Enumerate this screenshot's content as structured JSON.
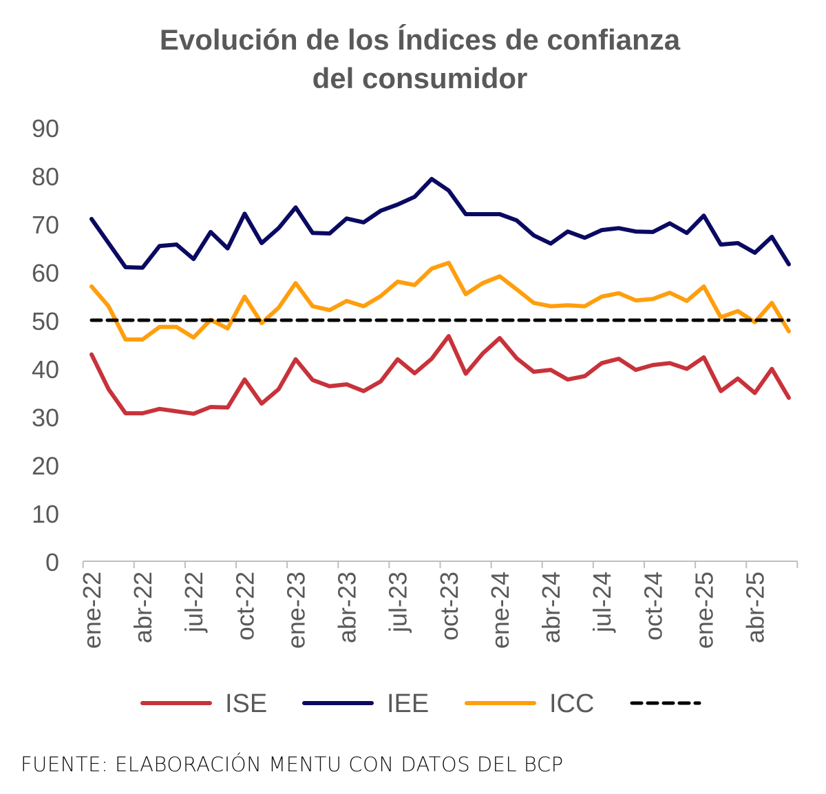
{
  "chart_data": {
    "type": "line",
    "title": [
      "Evolución de los Índices de confianza",
      "del consumidor"
    ],
    "xlabel": "",
    "ylabel": "",
    "ylim": [
      0,
      90
    ],
    "yticks": [
      "0",
      "10",
      "20",
      "30",
      "40",
      "50",
      "60",
      "70",
      "80",
      "90"
    ],
    "x_tick_labels": [
      "ene-22",
      "abr-22",
      "jul-22",
      "oct-22",
      "ene-23",
      "abr-23",
      "jul-23",
      "oct-23",
      "ene-24",
      "abr-24",
      "jul-24",
      "oct-24",
      "ene-25",
      "abr-25"
    ],
    "x_start": "ene-22",
    "x_end": "jun-25",
    "grid": false,
    "legend_placement": "bottom",
    "series": [
      {
        "name": "ISE",
        "color": "#C8323A",
        "style": "solid",
        "values": [
          42.9,
          35.7,
          30.7,
          30.7,
          31.6,
          31.1,
          30.6,
          32.0,
          31.9,
          37.7,
          32.7,
          35.7,
          41.9,
          37.6,
          36.3,
          36.7,
          35.3,
          37.3,
          41.9,
          39.0,
          42.0,
          46.7,
          38.9,
          43.1,
          46.3,
          42.1,
          39.3,
          39.7,
          37.7,
          38.4,
          41.1,
          42.0,
          39.7,
          40.7,
          41.1,
          39.9,
          42.3,
          35.3,
          37.9,
          34.9,
          39.9,
          33.9
        ]
      },
      {
        "name": "IEE",
        "color": "#0A0A62",
        "style": "solid",
        "values": [
          71.0,
          66.0,
          61.0,
          60.9,
          65.4,
          65.7,
          62.7,
          68.3,
          64.9,
          72.1,
          66.0,
          69.1,
          73.4,
          68.1,
          68.0,
          71.1,
          70.3,
          72.7,
          74.0,
          75.6,
          79.3,
          76.9,
          72.0,
          72.0,
          72.0,
          70.7,
          67.6,
          65.9,
          68.4,
          67.1,
          68.7,
          69.1,
          68.4,
          68.3,
          70.1,
          68.1,
          71.7,
          65.7,
          66.0,
          64.0,
          67.3,
          61.6
        ]
      },
      {
        "name": "ICC",
        "color": "#FF9E0D",
        "style": "solid",
        "values": [
          57.0,
          52.9,
          46.0,
          46.0,
          48.6,
          48.6,
          46.4,
          50.1,
          48.3,
          54.9,
          49.4,
          52.6,
          57.7,
          52.9,
          52.1,
          54.0,
          52.9,
          55.0,
          58.0,
          57.3,
          60.7,
          61.9,
          55.4,
          57.7,
          59.1,
          56.4,
          53.6,
          52.9,
          53.1,
          52.9,
          54.9,
          55.6,
          54.1,
          54.4,
          55.7,
          54.0,
          57.0,
          50.6,
          51.9,
          49.6,
          53.6,
          47.7
        ]
      },
      {
        "name": "",
        "color": "#000000",
        "style": "dashed",
        "constant": 50
      }
    ]
  },
  "source": "FUENTE: ELABORACIÓN MENTU CON DATOS DEL BCP"
}
